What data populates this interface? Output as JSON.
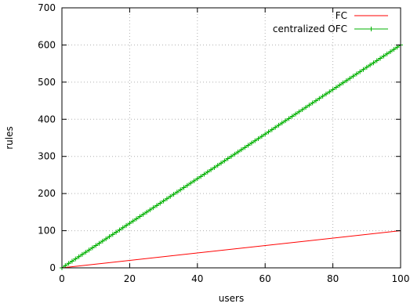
{
  "chart_data": {
    "type": "line",
    "xlabel": "users",
    "ylabel": "rules",
    "xlim": [
      0,
      100
    ],
    "ylim": [
      0,
      700
    ],
    "x_ticks": [
      0,
      20,
      40,
      60,
      80,
      100
    ],
    "y_ticks": [
      0,
      100,
      200,
      300,
      400,
      500,
      600,
      700
    ],
    "grid": true,
    "legend_position": "top-right",
    "series": [
      {
        "name": "FC",
        "color": "#ff0000",
        "marker": "none",
        "x": [
          0,
          100
        ],
        "y": [
          0,
          100
        ]
      },
      {
        "name": "centralized OFC",
        "color": "#00b000",
        "marker": "plus",
        "x": [
          0,
          100
        ],
        "y": [
          0,
          600
        ]
      }
    ]
  }
}
